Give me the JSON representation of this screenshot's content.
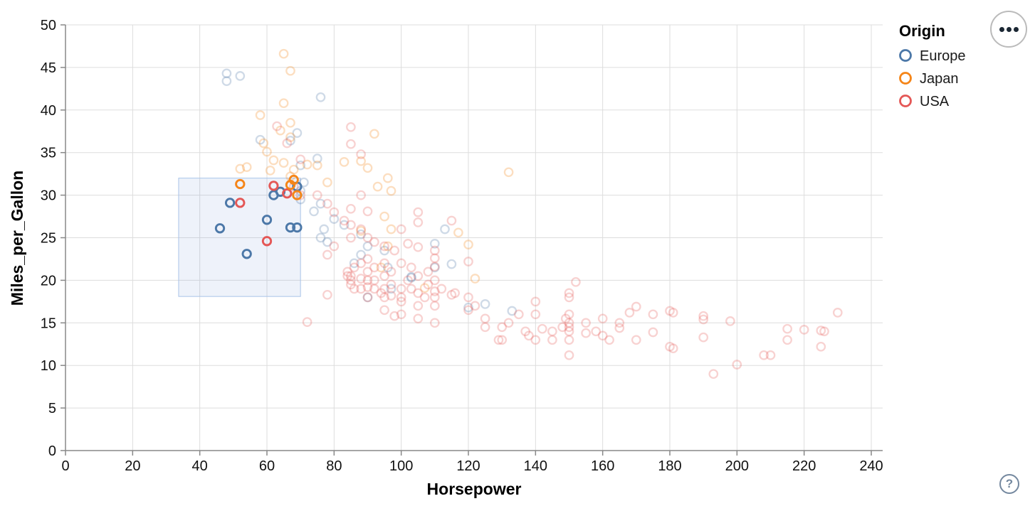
{
  "chart_data": {
    "type": "scatter",
    "title": "",
    "xlabel": "Horsepower",
    "ylabel": "Miles_per_Gallon",
    "x_domain": [
      0,
      240
    ],
    "y_domain": [
      0,
      50
    ],
    "x_ticks": [
      0,
      20,
      40,
      60,
      80,
      100,
      120,
      140,
      160,
      180,
      200,
      220,
      240
    ],
    "y_ticks": [
      0,
      5,
      10,
      15,
      20,
      25,
      30,
      35,
      40,
      45,
      50
    ],
    "grid": true,
    "legend": {
      "title": "Origin",
      "position": "top-right",
      "entries": [
        {
          "label": "Europe",
          "color": "#4c78a8"
        },
        {
          "label": "Japan",
          "color": "#f58518"
        },
        {
          "label": "USA",
          "color": "#e45756"
        }
      ]
    },
    "brush_selection": {
      "x_extent": [
        33.7,
        70
      ],
      "y_extent": [
        18.1,
        32
      ],
      "fill": "#7296d2",
      "fill_opacity": 0.12,
      "stroke": "#a9c4e9"
    },
    "point_style": {
      "shape": "ring",
      "faded_opacity": 0.27,
      "selected_opacity": 1.0
    },
    "points": [
      [
        48,
        44.3,
        "Europe",
        0
      ],
      [
        48,
        43.4,
        "Europe",
        0
      ],
      [
        52,
        44,
        "Europe",
        0
      ],
      [
        76,
        41.5,
        "Europe",
        0
      ],
      [
        58,
        36.5,
        "Europe",
        0
      ],
      [
        69,
        37.3,
        "Europe",
        0
      ],
      [
        67,
        36.4,
        "Europe",
        0
      ],
      [
        75,
        34.3,
        "Europe",
        0
      ],
      [
        70,
        33.5,
        "Europe",
        0
      ],
      [
        71,
        31.5,
        "Europe",
        0
      ],
      [
        70,
        30.5,
        "Europe",
        0
      ],
      [
        70,
        29.5,
        "Europe",
        0
      ],
      [
        76,
        29,
        "Europe",
        0
      ],
      [
        74,
        28.1,
        "Europe",
        0
      ],
      [
        80,
        27.2,
        "Europe",
        0
      ],
      [
        83,
        26.5,
        "Europe",
        0
      ],
      [
        77,
        26,
        "Europe",
        0
      ],
      [
        88,
        25.4,
        "Europe",
        0
      ],
      [
        76,
        25,
        "Europe",
        0
      ],
      [
        78,
        24.5,
        "Europe",
        0
      ],
      [
        90,
        24,
        "Europe",
        0
      ],
      [
        95,
        23.5,
        "Europe",
        0
      ],
      [
        88,
        23,
        "Europe",
        0
      ],
      [
        86,
        22,
        "Europe",
        0
      ],
      [
        96,
        21.5,
        "Europe",
        0
      ],
      [
        110,
        21.5,
        "Europe",
        0
      ],
      [
        103,
        20.3,
        "Europe",
        0
      ],
      [
        97,
        19,
        "Europe",
        0
      ],
      [
        90,
        18,
        "Europe",
        0
      ],
      [
        125,
        17.2,
        "Europe",
        0
      ],
      [
        120,
        16.8,
        "Europe",
        0
      ],
      [
        133,
        16.4,
        "Europe",
        0
      ],
      [
        113,
        26,
        "Europe",
        0
      ],
      [
        110,
        24.3,
        "Europe",
        0
      ],
      [
        115,
        21.9,
        "Europe",
        0
      ],
      [
        103,
        20.4,
        "Europe",
        0
      ],
      [
        65,
        46.6,
        "Japan",
        0
      ],
      [
        67,
        44.6,
        "Japan",
        0
      ],
      [
        65,
        40.8,
        "Japan",
        0
      ],
      [
        58,
        39.4,
        "Japan",
        0
      ],
      [
        67,
        38.5,
        "Japan",
        0
      ],
      [
        64,
        37.6,
        "Japan",
        0
      ],
      [
        92,
        37.2,
        "Japan",
        0
      ],
      [
        59,
        36.1,
        "Japan",
        0
      ],
      [
        67,
        36.8,
        "Japan",
        0
      ],
      [
        60,
        35.1,
        "Japan",
        0
      ],
      [
        62,
        34.1,
        "Japan",
        0
      ],
      [
        65,
        33.8,
        "Japan",
        0
      ],
      [
        72,
        33.6,
        "Japan",
        0
      ],
      [
        68,
        33,
        "Japan",
        0
      ],
      [
        61,
        32.9,
        "Japan",
        0
      ],
      [
        132,
        32.7,
        "Japan",
        0
      ],
      [
        67,
        32.2,
        "Japan",
        0
      ],
      [
        88,
        34,
        "Japan",
        0
      ],
      [
        90,
        33.2,
        "Japan",
        0
      ],
      [
        96,
        32,
        "Japan",
        0
      ],
      [
        93,
        31,
        "Japan",
        0
      ],
      [
        97,
        30.5,
        "Japan",
        0
      ],
      [
        95,
        27.5,
        "Japan",
        0
      ],
      [
        97,
        26,
        "Japan",
        0
      ],
      [
        88,
        25.8,
        "Japan",
        0
      ],
      [
        120,
        24.2,
        "Japan",
        0
      ],
      [
        122,
        20.2,
        "Japan",
        0
      ],
      [
        94,
        21.5,
        "Japan",
        0
      ],
      [
        75,
        33.5,
        "Japan",
        0
      ],
      [
        52,
        33.1,
        "Japan",
        0
      ],
      [
        54,
        33.3,
        "Japan",
        0
      ],
      [
        83,
        33.9,
        "Japan",
        0
      ],
      [
        78,
        31.5,
        "Japan",
        0
      ],
      [
        117,
        25.6,
        "Japan",
        0
      ],
      [
        96,
        24,
        "Japan",
        0
      ],
      [
        107,
        19.1,
        "Japan",
        0
      ],
      [
        63,
        38.1,
        "USA",
        0
      ],
      [
        85,
        38,
        "USA",
        0
      ],
      [
        66,
        36.1,
        "USA",
        0
      ],
      [
        70,
        34.2,
        "USA",
        0
      ],
      [
        88,
        34.8,
        "USA",
        0
      ],
      [
        85,
        36,
        "USA",
        0
      ],
      [
        68,
        31,
        "USA",
        0
      ],
      [
        70,
        30,
        "USA",
        0
      ],
      [
        75,
        30,
        "USA",
        0
      ],
      [
        78,
        29,
        "USA",
        0
      ],
      [
        80,
        28,
        "USA",
        0
      ],
      [
        85,
        28.4,
        "USA",
        0
      ],
      [
        88,
        30,
        "USA",
        0
      ],
      [
        90,
        28.1,
        "USA",
        0
      ],
      [
        83,
        27,
        "USA",
        0
      ],
      [
        85,
        26.5,
        "USA",
        0
      ],
      [
        88,
        26,
        "USA",
        0
      ],
      [
        90,
        25,
        "USA",
        0
      ],
      [
        92,
        24.5,
        "USA",
        0
      ],
      [
        95,
        24,
        "USA",
        0
      ],
      [
        98,
        23.5,
        "USA",
        0
      ],
      [
        85,
        25,
        "USA",
        0
      ],
      [
        80,
        24,
        "USA",
        0
      ],
      [
        78,
        23,
        "USA",
        0
      ],
      [
        100,
        26,
        "USA",
        0
      ],
      [
        105,
        23.9,
        "USA",
        0
      ],
      [
        102,
        24.3,
        "USA",
        0
      ],
      [
        105,
        28,
        "USA",
        0
      ],
      [
        105,
        26.8,
        "USA",
        0
      ],
      [
        115,
        27,
        "USA",
        0
      ],
      [
        84,
        21,
        "USA",
        0
      ],
      [
        86,
        21.5,
        "USA",
        0
      ],
      [
        88,
        22,
        "USA",
        0
      ],
      [
        90,
        21,
        "USA",
        0
      ],
      [
        92,
        21.5,
        "USA",
        0
      ],
      [
        95,
        22,
        "USA",
        0
      ],
      [
        97,
        21,
        "USA",
        0
      ],
      [
        100,
        22,
        "USA",
        0
      ],
      [
        103,
        21.5,
        "USA",
        0
      ],
      [
        105,
        20.5,
        "USA",
        0
      ],
      [
        110,
        20,
        "USA",
        0
      ],
      [
        84,
        20.5,
        "USA",
        0
      ],
      [
        90,
        22.5,
        "USA",
        0
      ],
      [
        108,
        21,
        "USA",
        0
      ],
      [
        110,
        23.5,
        "USA",
        0
      ],
      [
        110,
        22.6,
        "USA",
        0
      ],
      [
        120,
        22.2,
        "USA",
        0
      ],
      [
        110,
        21.6,
        "USA",
        0
      ],
      [
        85,
        20.5,
        "USA",
        0
      ],
      [
        85,
        20,
        "USA",
        0
      ],
      [
        85,
        19.5,
        "USA",
        0
      ],
      [
        86,
        19,
        "USA",
        0
      ],
      [
        88,
        20.2,
        "USA",
        0
      ],
      [
        88,
        19,
        "USA",
        0
      ],
      [
        90,
        20,
        "USA",
        0
      ],
      [
        90,
        19.2,
        "USA",
        0
      ],
      [
        90,
        18,
        "USA",
        0
      ],
      [
        92,
        20,
        "USA",
        0
      ],
      [
        92,
        19,
        "USA",
        0
      ],
      [
        94,
        18.5,
        "USA",
        0
      ],
      [
        95,
        20.5,
        "USA",
        0
      ],
      [
        95,
        19,
        "USA",
        0
      ],
      [
        95,
        18,
        "USA",
        0
      ],
      [
        97,
        19.5,
        "USA",
        0
      ],
      [
        97,
        18.2,
        "USA",
        0
      ],
      [
        100,
        19,
        "USA",
        0
      ],
      [
        100,
        18,
        "USA",
        0
      ],
      [
        100,
        17.5,
        "USA",
        0
      ],
      [
        102,
        20,
        "USA",
        0
      ],
      [
        103,
        19,
        "USA",
        0
      ],
      [
        105,
        18.5,
        "USA",
        0
      ],
      [
        105,
        17,
        "USA",
        0
      ],
      [
        107,
        18,
        "USA",
        0
      ],
      [
        108,
        19.5,
        "USA",
        0
      ],
      [
        110,
        18,
        "USA",
        0
      ],
      [
        110,
        17,
        "USA",
        0
      ],
      [
        112,
        19,
        "USA",
        0
      ],
      [
        115,
        18.3,
        "USA",
        0
      ],
      [
        110,
        18.7,
        "USA",
        0
      ],
      [
        95,
        16.5,
        "USA",
        0
      ],
      [
        98,
        15.8,
        "USA",
        0
      ],
      [
        100,
        16,
        "USA",
        0
      ],
      [
        105,
        15.5,
        "USA",
        0
      ],
      [
        110,
        15,
        "USA",
        0
      ],
      [
        72,
        15.1,
        "USA",
        0
      ],
      [
        78,
        18.3,
        "USA",
        0
      ],
      [
        116,
        18.5,
        "USA",
        0
      ],
      [
        120,
        18,
        "USA",
        0
      ],
      [
        120,
        16.5,
        "USA",
        0
      ],
      [
        122,
        17,
        "USA",
        0
      ],
      [
        125,
        15.5,
        "USA",
        0
      ],
      [
        125,
        14.5,
        "USA",
        0
      ],
      [
        129,
        13,
        "USA",
        0
      ],
      [
        130,
        13,
        "USA",
        0
      ],
      [
        130,
        14.5,
        "USA",
        0
      ],
      [
        132,
        15,
        "USA",
        0
      ],
      [
        135,
        16,
        "USA",
        0
      ],
      [
        137,
        14,
        "USA",
        0
      ],
      [
        138,
        13.5,
        "USA",
        0
      ],
      [
        140,
        17.5,
        "USA",
        0
      ],
      [
        140,
        16,
        "USA",
        0
      ],
      [
        140,
        13,
        "USA",
        0
      ],
      [
        142,
        14.3,
        "USA",
        0
      ],
      [
        145,
        14,
        "USA",
        0
      ],
      [
        145,
        13,
        "USA",
        0
      ],
      [
        148,
        14.5,
        "USA",
        0
      ],
      [
        149,
        15.5,
        "USA",
        0
      ],
      [
        150,
        18.5,
        "USA",
        0
      ],
      [
        150,
        18,
        "USA",
        0
      ],
      [
        150,
        16,
        "USA",
        0
      ],
      [
        150,
        15,
        "USA",
        0
      ],
      [
        150,
        14.5,
        "USA",
        0
      ],
      [
        150,
        14,
        "USA",
        0
      ],
      [
        150,
        13,
        "USA",
        0
      ],
      [
        150,
        11.2,
        "USA",
        0
      ],
      [
        152,
        19.8,
        "USA",
        0
      ],
      [
        155,
        15,
        "USA",
        0
      ],
      [
        155,
        13.8,
        "USA",
        0
      ],
      [
        158,
        14,
        "USA",
        0
      ],
      [
        160,
        15.5,
        "USA",
        0
      ],
      [
        160,
        13.5,
        "USA",
        0
      ],
      [
        162,
        13,
        "USA",
        0
      ],
      [
        165,
        15,
        "USA",
        0
      ],
      [
        165,
        14.4,
        "USA",
        0
      ],
      [
        168,
        16.2,
        "USA",
        0
      ],
      [
        170,
        16.9,
        "USA",
        0
      ],
      [
        170,
        13,
        "USA",
        0
      ],
      [
        175,
        16,
        "USA",
        0
      ],
      [
        175,
        13.9,
        "USA",
        0
      ],
      [
        180,
        16.4,
        "USA",
        0
      ],
      [
        181,
        16.2,
        "USA",
        0
      ],
      [
        180,
        12.2,
        "USA",
        0
      ],
      [
        181,
        12,
        "USA",
        0
      ],
      [
        190,
        15.8,
        "USA",
        0
      ],
      [
        190,
        15.4,
        "USA",
        0
      ],
      [
        190,
        13.3,
        "USA",
        0
      ],
      [
        193,
        9,
        "USA",
        0
      ],
      [
        198,
        15.2,
        "USA",
        0
      ],
      [
        200,
        10.1,
        "USA",
        0
      ],
      [
        208,
        11.2,
        "USA",
        0
      ],
      [
        210,
        11.2,
        "USA",
        0
      ],
      [
        215,
        14.3,
        "USA",
        0
      ],
      [
        215,
        13,
        "USA",
        0
      ],
      [
        220,
        14.2,
        "USA",
        0
      ],
      [
        225,
        14.1,
        "USA",
        0
      ],
      [
        226,
        14,
        "USA",
        0
      ],
      [
        225,
        12.2,
        "USA",
        0
      ],
      [
        230,
        16.2,
        "USA",
        0
      ],
      [
        49,
        29.1,
        "Europe",
        1
      ],
      [
        46,
        26.1,
        "Europe",
        1
      ],
      [
        60,
        27.1,
        "Europe",
        1
      ],
      [
        67,
        26.2,
        "Europe",
        1
      ],
      [
        69,
        26.2,
        "Europe",
        1
      ],
      [
        54,
        23.1,
        "Europe",
        1
      ],
      [
        64,
        30.4,
        "Europe",
        1
      ],
      [
        62,
        30,
        "Europe",
        1
      ],
      [
        69,
        31,
        "Europe",
        1
      ],
      [
        52,
        29.1,
        "USA",
        1
      ],
      [
        60,
        24.6,
        "USA",
        1
      ],
      [
        62,
        31.1,
        "USA",
        1
      ],
      [
        66,
        30.2,
        "USA",
        1
      ],
      [
        52,
        31.3,
        "Japan",
        1
      ],
      [
        68,
        31.8,
        "Japan",
        1
      ],
      [
        67,
        31.2,
        "Japan",
        1
      ],
      [
        69,
        30,
        "Japan",
        1
      ]
    ]
  },
  "ui": {
    "actions_menu": {
      "icon": "ellipsis-icon"
    },
    "help": {
      "glyph": "?",
      "icon": "question-mark-icon"
    }
  }
}
